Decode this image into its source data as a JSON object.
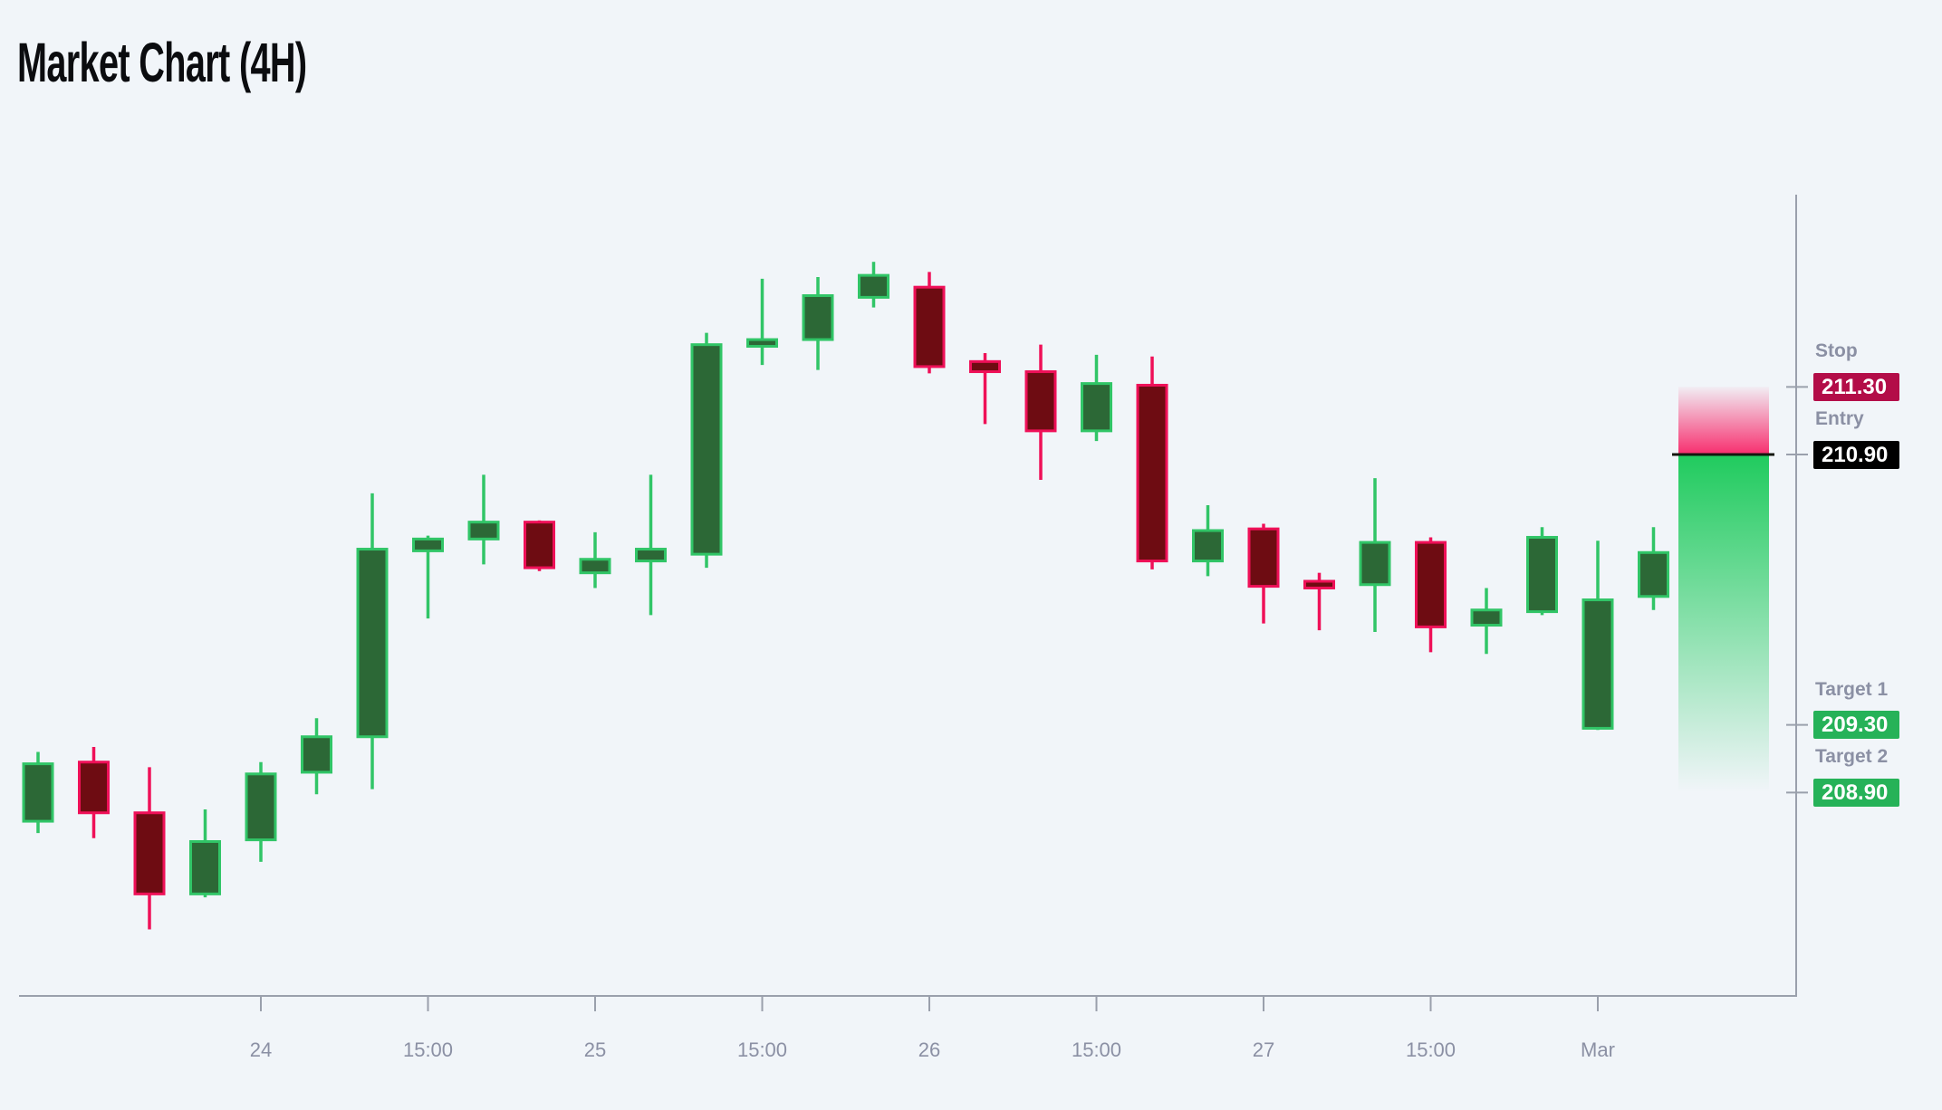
{
  "title": "Market Chart (4H)",
  "colors": {
    "background": "#f1f5f9",
    "title": "#0b0c0f",
    "axis_line": "#9aa0ac",
    "tick_label": "#8b90a4",
    "level_label": "#8b90a4",
    "badge_text": "#ffffff",
    "candle_up_fill": "#2c6836",
    "candle_up_stroke": "#31c567",
    "candle_down_fill": "#6e0c12",
    "candle_down_stroke": "#ef1058",
    "risk_zone": "#f72e6e",
    "reward_zone": "#20cb5e",
    "entry_line": "#14170f",
    "stop_badge": "#b30d48",
    "entry_badge": "#000000",
    "target_badge": "#26b258"
  },
  "chart_data": {
    "type": "candlestick",
    "title": "Market Chart (4H)",
    "timeframe": "4H",
    "legend": "none",
    "grid": "off",
    "y_axis_side": "right",
    "visible_price_range": [
      208.09,
      212.04
    ],
    "x_ticks": [
      {
        "at_candle": 4,
        "label": "24"
      },
      {
        "at_candle": 7,
        "label": "15:00"
      },
      {
        "at_candle": 10,
        "label": "25"
      },
      {
        "at_candle": 13,
        "label": "15:00"
      },
      {
        "at_candle": 16,
        "label": "26"
      },
      {
        "at_candle": 19,
        "label": "15:00"
      },
      {
        "at_candle": 22,
        "label": "27"
      },
      {
        "at_candle": 25,
        "label": "15:00"
      },
      {
        "at_candle": 28,
        "label": "Mar"
      }
    ],
    "candles": [
      {
        "o": 208.73,
        "h": 209.14,
        "l": 208.66,
        "c": 209.07
      },
      {
        "o": 209.08,
        "h": 209.17,
        "l": 208.63,
        "c": 208.78
      },
      {
        "o": 208.78,
        "h": 209.05,
        "l": 208.09,
        "c": 208.3
      },
      {
        "o": 208.3,
        "h": 208.8,
        "l": 208.28,
        "c": 208.61
      },
      {
        "o": 208.62,
        "h": 209.08,
        "l": 208.49,
        "c": 209.01
      },
      {
        "o": 209.02,
        "h": 209.34,
        "l": 208.89,
        "c": 209.23
      },
      {
        "o": 209.23,
        "h": 210.67,
        "l": 208.92,
        "c": 210.34
      },
      {
        "o": 210.33,
        "h": 210.42,
        "l": 209.93,
        "c": 210.4
      },
      {
        "o": 210.4,
        "h": 210.78,
        "l": 210.25,
        "c": 210.5
      },
      {
        "o": 210.5,
        "h": 210.51,
        "l": 210.21,
        "c": 210.23
      },
      {
        "o": 210.2,
        "h": 210.44,
        "l": 210.11,
        "c": 210.28
      },
      {
        "o": 210.27,
        "h": 210.78,
        "l": 209.95,
        "c": 210.34
      },
      {
        "o": 210.31,
        "h": 211.62,
        "l": 210.23,
        "c": 211.55
      },
      {
        "o": 211.54,
        "h": 211.94,
        "l": 211.43,
        "c": 211.58
      },
      {
        "o": 211.58,
        "h": 211.95,
        "l": 211.4,
        "c": 211.84
      },
      {
        "o": 211.83,
        "h": 212.04,
        "l": 211.77,
        "c": 211.96
      },
      {
        "o": 211.89,
        "h": 211.98,
        "l": 211.38,
        "c": 211.42
      },
      {
        "o": 211.45,
        "h": 211.5,
        "l": 211.08,
        "c": 211.39
      },
      {
        "o": 211.39,
        "h": 211.55,
        "l": 210.75,
        "c": 211.04
      },
      {
        "o": 211.04,
        "h": 211.49,
        "l": 210.98,
        "c": 211.32
      },
      {
        "o": 211.31,
        "h": 211.48,
        "l": 210.22,
        "c": 210.27
      },
      {
        "o": 210.27,
        "h": 210.6,
        "l": 210.18,
        "c": 210.45
      },
      {
        "o": 210.46,
        "h": 210.49,
        "l": 209.9,
        "c": 210.12
      },
      {
        "o": 210.15,
        "h": 210.2,
        "l": 209.86,
        "c": 210.11
      },
      {
        "o": 210.13,
        "h": 210.76,
        "l": 209.85,
        "c": 210.38
      },
      {
        "o": 210.38,
        "h": 210.41,
        "l": 209.73,
        "c": 209.88
      },
      {
        "o": 209.89,
        "h": 210.11,
        "l": 209.72,
        "c": 209.98
      },
      {
        "o": 209.97,
        "h": 210.47,
        "l": 209.95,
        "c": 210.41
      },
      {
        "o": 209.28,
        "h": 210.39,
        "l": 209.27,
        "c": 210.04
      },
      {
        "o": 210.06,
        "h": 210.47,
        "l": 209.98,
        "c": 210.32
      }
    ],
    "levels": [
      {
        "name": "Stop",
        "value": "211.30",
        "price": 211.3,
        "badge_color": "#b30d48"
      },
      {
        "name": "Entry",
        "value": "210.90",
        "price": 210.9,
        "badge_color": "#000000"
      },
      {
        "name": "Target 1",
        "value": "209.30",
        "price": 209.3,
        "badge_color": "#26b258"
      },
      {
        "name": "Target 2",
        "value": "208.90",
        "price": 208.9,
        "badge_color": "#26b258"
      }
    ],
    "trade_zone": {
      "direction": "short",
      "risk_top_price": 211.3,
      "entry_price": 210.9,
      "reward_bottom_price": 208.9
    }
  }
}
